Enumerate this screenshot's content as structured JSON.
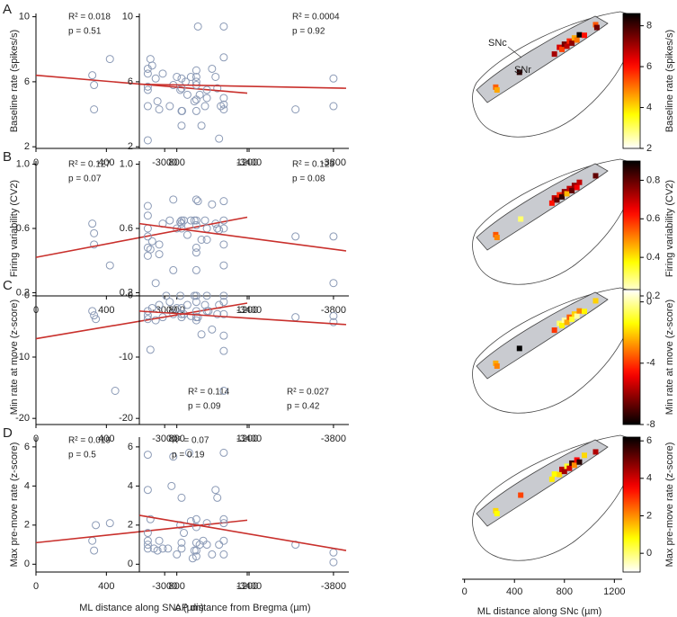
{
  "chart_data": [
    {
      "type": "scatter",
      "panel": "A",
      "ylabel": "Baseline rate (spikes/s)",
      "xlim": [
        0,
        1200
      ],
      "xticks": [
        0,
        400,
        800,
        1200
      ],
      "ylim": [
        1.9,
        10.2
      ],
      "yticks": [
        2,
        6,
        10
      ],
      "x": [
        320,
        330,
        330,
        420,
        650,
        660,
        680,
        690,
        700,
        720,
        760,
        780,
        800,
        820,
        830,
        850,
        860,
        880,
        900,
        920,
        930,
        940,
        960,
        1000,
        1020,
        1030,
        1040,
        1050
      ],
      "values": [
        6.4,
        5.8,
        4.3,
        7.4,
        7.4,
        7.0,
        6.2,
        4.8,
        4.3,
        6.5,
        4.5,
        5.8,
        6.3,
        5.5,
        4.2,
        6.0,
        5.2,
        6.3,
        4.8,
        9.4,
        5.2,
        3.3,
        4.5,
        6.8,
        6.3,
        5.6,
        2.5,
        4.5
      ],
      "fit": {
        "x": [
          0,
          1200
        ],
        "values": [
          6.4,
          5.3
        ]
      },
      "annotations": [
        "R² = 0.018",
        "p = 0.51"
      ],
      "annotation_position": "top-left",
      "color": "#8b9ab6",
      "fit_color": "#c9302c"
    },
    {
      "type": "scatter",
      "xlim": [
        -2880,
        -3860
      ],
      "xticks": [
        -3000,
        -3400,
        -3800
      ],
      "ylim": [
        1.9,
        10.2
      ],
      "yticks": [
        2,
        6,
        10
      ],
      "x": [
        -2920,
        -2920,
        -2920,
        -2920,
        -2920,
        -2920,
        -3080,
        -3080,
        -3080,
        -3080,
        -3150,
        -3150,
        -3150,
        -3150,
        -3150,
        -3150,
        -3200,
        -3200,
        -3280,
        -3280,
        -3280,
        -3280,
        -3280,
        -3620,
        -3800,
        -3800
      ],
      "values": [
        6.8,
        6.5,
        5.7,
        5.5,
        4.5,
        2.4,
        6.2,
        5.6,
        4.2,
        3.3,
        6.7,
        6.3,
        5.8,
        4.9,
        4.2,
        6.0,
        5.5,
        5.0,
        9.4,
        7.5,
        5.0,
        4.6,
        4.3,
        4.3,
        6.2,
        4.5
      ],
      "fit": {
        "x": [
          -2880,
          -3860
        ],
        "values": [
          5.85,
          5.6
        ]
      },
      "annotations": [
        "R² = 0.0004",
        "p = 0.92"
      ],
      "annotation_position": "top-right",
      "color": "#8b9ab6",
      "fit_color": "#c9302c"
    },
    {
      "type": "heatmap",
      "xlim": [
        -120,
        1320
      ],
      "annotations": [
        "SNc",
        "SNr"
      ],
      "clim": [
        2,
        8.6
      ],
      "cticks": [
        2,
        4,
        6,
        8
      ],
      "clabel": "Baseline rate (spikes/s)",
      "reverse": false,
      "x": [
        250,
        260,
        440,
        720,
        760,
        780,
        800,
        820,
        840,
        860,
        880,
        900,
        920,
        960,
        1050,
        1060
      ],
      "values": [
        5.2,
        4.5,
        8.2,
        7,
        6.5,
        5.5,
        7.5,
        6.8,
        5.8,
        7.2,
        4.5,
        5.0,
        8.5,
        6.0,
        5.3,
        7.5
      ]
    },
    {
      "type": "scatter",
      "panel": "B",
      "ylabel": "Firing variability (CV2)",
      "xlim": [
        0,
        1200
      ],
      "xticks": [
        0,
        400,
        800,
        1200
      ],
      "ylim": [
        0.18,
        1.02
      ],
      "yticks": [
        0.2,
        0.6,
        {
          "value": 1.0,
          "label": "1.0"
        }
      ],
      "x": [
        320,
        330,
        330,
        420,
        650,
        660,
        680,
        700,
        700,
        720,
        760,
        780,
        780,
        800,
        820,
        840,
        860,
        880,
        900,
        920,
        940,
        960,
        1000,
        1020,
        1030,
        1040
      ],
      "values": [
        0.63,
        0.57,
        0.5,
        0.37,
        0.47,
        0.52,
        0.26,
        0.44,
        0.5,
        0.63,
        0.65,
        0.34,
        0.78,
        0.6,
        0.64,
        0.65,
        0.56,
        0.65,
        0.65,
        0.77,
        0.53,
        0.65,
        0.75,
        0.63,
        0.6,
        0.59
      ],
      "fit": {
        "x": [
          0,
          1200
        ],
        "values": [
          0.42,
          0.67
        ]
      },
      "annotations": [
        "R² = 0.127",
        "p = 0.07"
      ],
      "annotation_position": "top-left",
      "color": "#8b9ab6",
      "fit_color": "#c9302c"
    },
    {
      "type": "scatter",
      "xlim": [
        -2880,
        -3860
      ],
      "xticks": [
        -3000,
        -3400,
        -3800
      ],
      "ylim": [
        0.18,
        1.02
      ],
      "yticks": [
        0.2,
        0.6,
        {
          "value": 1.0,
          "label": "1.0"
        }
      ],
      "x": [
        -2920,
        -2920,
        -2920,
        -2920,
        -2920,
        -2920,
        -3080,
        -3080,
        -3080,
        -3150,
        -3150,
        -3150,
        -3150,
        -3150,
        -3150,
        -3200,
        -3200,
        -3280,
        -3280,
        -3280,
        -3280,
        -3280,
        -3620,
        -3800,
        -3800
      ],
      "values": [
        0.74,
        0.68,
        0.6,
        0.55,
        0.48,
        0.43,
        0.65,
        0.63,
        0.6,
        0.78,
        0.65,
        0.62,
        0.48,
        0.45,
        0.34,
        0.6,
        0.53,
        0.77,
        0.65,
        0.6,
        0.5,
        0.37,
        0.55,
        0.55,
        0.26
      ],
      "fit": {
        "x": [
          -2880,
          -3860
        ],
        "values": [
          0.63,
          0.46
        ]
      },
      "annotations": [
        "R² = 0.123",
        "p = 0.08"
      ],
      "annotation_position": "top-right",
      "color": "#8b9ab6",
      "fit_color": "#c9302c"
    },
    {
      "type": "heatmap",
      "xlim": [
        -120,
        1320
      ],
      "clim": [
        0.2,
        0.9
      ],
      "cticks": [
        0.2,
        0.4,
        0.6,
        0.8
      ],
      "clabel": "Firing variability (CV2)",
      "reverse": false,
      "x": [
        250,
        260,
        450,
        700,
        720,
        740,
        760,
        780,
        800,
        820,
        840,
        860,
        880,
        900,
        920,
        1050
      ],
      "values": [
        0.55,
        0.5,
        0.3,
        0.62,
        0.7,
        0.8,
        0.6,
        0.85,
        0.75,
        0.45,
        0.7,
        0.8,
        0.75,
        0.65,
        0.7,
        0.8
      ]
    },
    {
      "type": "scatter",
      "panel": "C",
      "ylabel": "Min rate at move (z-score)",
      "xlim": [
        0,
        1200
      ],
      "xticks": [
        0,
        400,
        800,
        1200
      ],
      "ylim": [
        -21,
        1
      ],
      "yticks": [
        -20,
        -10,
        0
      ],
      "x": [
        320,
        330,
        340,
        450,
        650,
        660,
        680,
        700,
        720,
        740,
        760,
        780,
        800,
        820,
        840,
        860,
        880,
        900,
        920,
        940,
        960,
        980,
        1000,
        1030,
        1040
      ],
      "values": [
        -2.5,
        -3.2,
        -3.8,
        -15.5,
        -8.8,
        -2,
        -4,
        -1.5,
        -3.5,
        0,
        -1,
        -3,
        -2,
        0,
        -3,
        -1.5,
        -3.3,
        0,
        -3.5,
        -6.3,
        -1.5,
        -2.5,
        -5.5,
        -3,
        -1.5
      ],
      "fit": {
        "x": [
          0,
          1200
        ],
        "values": [
          -7,
          -1.2
        ]
      },
      "annotations": [
        "R² = 0.114",
        "p = 0.09"
      ],
      "annotation_position": "bottom-right",
      "color": "#8b9ab6",
      "fit_color": "#c9302c"
    },
    {
      "type": "scatter",
      "xlim": [
        -2880,
        -3860
      ],
      "xticks": [
        -3000,
        -3400,
        -3800
      ],
      "ylim": [
        -21,
        1
      ],
      "yticks": [
        -20,
        -10,
        0
      ],
      "x": [
        -2920,
        -2920,
        -2920,
        -3080,
        -3080,
        -3080,
        -3150,
        -3150,
        -3150,
        -3150,
        -3150,
        -3200,
        -3200,
        -3280,
        -3280,
        -3280,
        -3280,
        -3280,
        -3280,
        -3620,
        -3800,
        -3800
      ],
      "values": [
        -2.5,
        -3.2,
        -3.8,
        -2,
        -3,
        -3.5,
        0,
        -1,
        -2.5,
        -3.5,
        -4,
        0,
        -2.5,
        0,
        -1,
        -3,
        -6.5,
        -9,
        -15.5,
        -3.5,
        -3.3,
        -4.3
      ],
      "fit": {
        "x": [
          -2880,
          -3860
        ],
        "values": [
          -2.5,
          -4.7
        ]
      },
      "annotations": [
        "R² = 0.027",
        "p = 0.42"
      ],
      "annotation_position": "bottom-right",
      "color": "#8b9ab6",
      "fit_color": "#c9302c"
    },
    {
      "type": "heatmap",
      "xlim": [
        -120,
        1320
      ],
      "clim": [
        -8,
        0.8
      ],
      "cticks": [
        -8,
        -4,
        0
      ],
      "clabel": "Min rate at move (z-score)",
      "reverse": true,
      "x": [
        250,
        260,
        440,
        720,
        760,
        780,
        800,
        820,
        840,
        860,
        880,
        900,
        920,
        960,
        1050
      ],
      "values": [
        -2.5,
        -3,
        -8,
        -4,
        -0.5,
        -1.5,
        0,
        -2.5,
        -3.5,
        -1,
        -2,
        0,
        -3,
        -1.5,
        -2
      ]
    },
    {
      "type": "scatter",
      "panel": "D",
      "ylabel": "Max pre-move rate (z-score)",
      "xlabel": "ML distance along SNc (µm)",
      "xlim": [
        0,
        1200
      ],
      "xticks": [
        0,
        400,
        800,
        1200
      ],
      "ylim": [
        -0.4,
        6.5
      ],
      "yticks": [
        0,
        2,
        4,
        6
      ],
      "x": [
        320,
        330,
        340,
        420,
        650,
        670,
        690,
        700,
        720,
        750,
        770,
        780,
        800,
        820,
        840,
        870,
        880,
        890,
        900,
        930,
        950,
        1000,
        1020,
        1030,
        1040
      ],
      "values": [
        1.2,
        0.7,
        2.0,
        2.1,
        2.3,
        0.8,
        0.7,
        1.2,
        0.8,
        0.8,
        4.0,
        5.5,
        0.5,
        2.0,
        1.6,
        5.7,
        2.2,
        0.3,
        0.7,
        1.0,
        1.2,
        0.5,
        3.8,
        3.4,
        1.0
      ],
      "fit": {
        "x": [
          0,
          1200
        ],
        "values": [
          1.1,
          2.25
        ]
      },
      "annotations": [
        "R² = 0.019",
        "p = 0.5"
      ],
      "annotation_position": "top-left",
      "color": "#8b9ab6",
      "fit_color": "#c9302c"
    },
    {
      "type": "scatter",
      "xlabel": "AP distance from Bregma (µm)",
      "xlim": [
        -2880,
        -3860
      ],
      "xticks": [
        -3000,
        -3400,
        -3800
      ],
      "ylim": [
        -0.4,
        6.5
      ],
      "yticks": [
        0,
        2,
        4,
        6
      ],
      "x": [
        -2920,
        -2920,
        -2920,
        -2920,
        -2920,
        -2920,
        -3080,
        -3080,
        -3080,
        -3150,
        -3150,
        -3150,
        -3150,
        -3150,
        -3200,
        -3200,
        -3280,
        -3280,
        -3280,
        -3280,
        -3280,
        -3620,
        -3800,
        -3800
      ],
      "values": [
        5.6,
        3.8,
        1.6,
        1.2,
        1.0,
        0.8,
        3.4,
        1.1,
        0.8,
        2.3,
        1.9,
        1.1,
        0.7,
        0.4,
        2.1,
        1.0,
        5.7,
        2.3,
        2.1,
        1.2,
        0.5,
        1.0,
        0.6,
        0.1
      ],
      "fit": {
        "x": [
          -2880,
          -3860
        ],
        "values": [
          2.5,
          0.7
        ]
      },
      "annotations": [
        "R² = 0.07",
        "p = 0.19"
      ],
      "annotation_position": "top-left",
      "color": "#8b9ab6",
      "fit_color": "#c9302c"
    },
    {
      "type": "heatmap",
      "xlabel": "ML distance along SNc (µm)",
      "xlim": [
        -120,
        1320
      ],
      "xticks": [
        0,
        400,
        800,
        1200
      ],
      "clim": [
        -1,
        6.2
      ],
      "cticks": [
        0,
        2,
        4,
        6
      ],
      "clabel": "Max pre-move rate (z-score)",
      "reverse": false,
      "x": [
        250,
        260,
        450,
        700,
        720,
        760,
        780,
        800,
        820,
        840,
        860,
        880,
        900,
        920,
        960,
        1050
      ],
      "values": [
        1.2,
        0.8,
        2.8,
        1,
        0.8,
        1.2,
        4.2,
        4.5,
        0.5,
        4.0,
        5.5,
        2.0,
        3.5,
        5.8,
        1.2,
        4.3
      ]
    }
  ]
}
